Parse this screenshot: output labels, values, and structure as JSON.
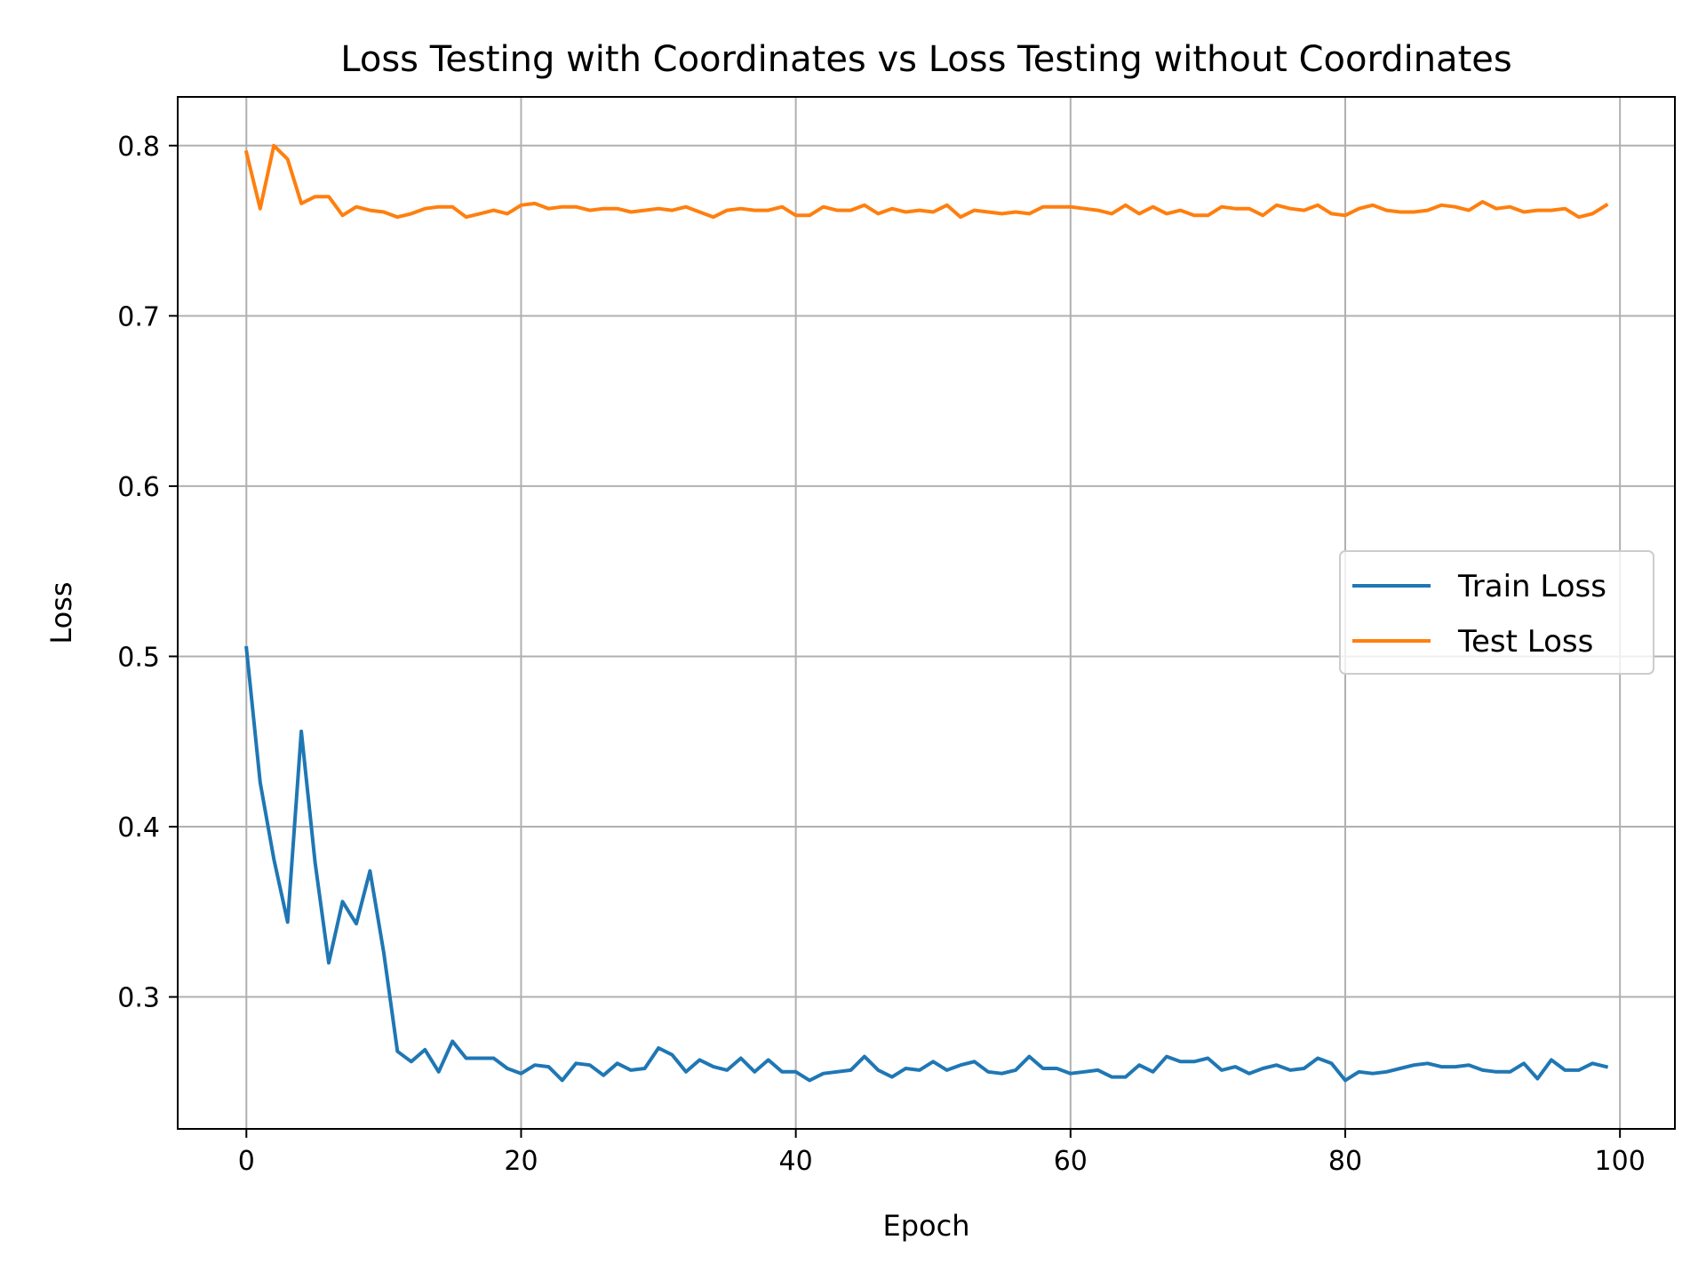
{
  "chart_data": {
    "type": "line",
    "title": "Loss Testing with Coordinates vs Loss Testing without Coordinates",
    "xlabel": "Epoch",
    "ylabel": "Loss",
    "xlim": [
      -5,
      104
    ],
    "ylim": [
      0.2225,
      0.8286
    ],
    "xticks": [
      0,
      20,
      40,
      60,
      80,
      100
    ],
    "yticks": [
      0.3,
      0.4,
      0.5,
      0.6,
      0.7,
      0.8
    ],
    "xtick_labels": [
      "0",
      "20",
      "40",
      "60",
      "80",
      "100"
    ],
    "ytick_labels": [
      "0.3",
      "0.4",
      "0.5",
      "0.6",
      "0.7",
      "0.8"
    ],
    "grid": true,
    "legend_position": "center-right",
    "series": [
      {
        "name": "Train Loss",
        "color": "#1f77b4",
        "x": [
          0,
          1,
          2,
          3,
          4,
          5,
          6,
          7,
          8,
          9,
          10,
          11,
          12,
          13,
          14,
          15,
          16,
          17,
          18,
          19,
          20,
          21,
          22,
          23,
          24,
          25,
          26,
          27,
          28,
          29,
          30,
          31,
          32,
          33,
          34,
          35,
          36,
          37,
          38,
          39,
          40,
          41,
          42,
          43,
          44,
          45,
          46,
          47,
          48,
          49,
          50,
          51,
          52,
          53,
          54,
          55,
          56,
          57,
          58,
          59,
          60,
          61,
          62,
          63,
          64,
          65,
          66,
          67,
          68,
          69,
          70,
          71,
          72,
          73,
          74,
          75,
          76,
          77,
          78,
          79,
          80,
          81,
          82,
          83,
          84,
          85,
          86,
          87,
          88,
          89,
          90,
          91,
          92,
          93,
          94,
          95,
          96,
          97,
          98,
          99
        ],
        "values": [
          0.505,
          0.426,
          0.381,
          0.344,
          0.456,
          0.379,
          0.32,
          0.356,
          0.343,
          0.374,
          0.326,
          0.268,
          0.262,
          0.269,
          0.256,
          0.274,
          0.264,
          0.264,
          0.264,
          0.258,
          0.255,
          0.26,
          0.259,
          0.251,
          0.261,
          0.26,
          0.254,
          0.261,
          0.257,
          0.258,
          0.27,
          0.266,
          0.256,
          0.263,
          0.259,
          0.257,
          0.264,
          0.256,
          0.263,
          0.256,
          0.256,
          0.251,
          0.255,
          0.256,
          0.257,
          0.265,
          0.257,
          0.253,
          0.258,
          0.257,
          0.262,
          0.257,
          0.26,
          0.262,
          0.256,
          0.255,
          0.257,
          0.265,
          0.258,
          0.258,
          0.255,
          0.256,
          0.257,
          0.253,
          0.253,
          0.26,
          0.256,
          0.265,
          0.262,
          0.262,
          0.264,
          0.257,
          0.259,
          0.255,
          0.258,
          0.26,
          0.257,
          0.258,
          0.264,
          0.261,
          0.251,
          0.256,
          0.255,
          0.256,
          0.258,
          0.26,
          0.261,
          0.259,
          0.259,
          0.26,
          0.257,
          0.256,
          0.256,
          0.261,
          0.252,
          0.263,
          0.257,
          0.257,
          0.261,
          0.259
        ]
      },
      {
        "name": "Test Loss",
        "color": "#ff7f0e",
        "x": [
          0,
          1,
          2,
          3,
          4,
          5,
          6,
          7,
          8,
          9,
          10,
          11,
          12,
          13,
          14,
          15,
          16,
          17,
          18,
          19,
          20,
          21,
          22,
          23,
          24,
          25,
          26,
          27,
          28,
          29,
          30,
          31,
          32,
          33,
          34,
          35,
          36,
          37,
          38,
          39,
          40,
          41,
          42,
          43,
          44,
          45,
          46,
          47,
          48,
          49,
          50,
          51,
          52,
          53,
          54,
          55,
          56,
          57,
          58,
          59,
          60,
          61,
          62,
          63,
          64,
          65,
          66,
          67,
          68,
          69,
          70,
          71,
          72,
          73,
          74,
          75,
          76,
          77,
          78,
          79,
          80,
          81,
          82,
          83,
          84,
          85,
          86,
          87,
          88,
          89,
          90,
          91,
          92,
          93,
          94,
          95,
          96,
          97,
          98,
          99
        ],
        "values": [
          0.796,
          0.763,
          0.8,
          0.792,
          0.766,
          0.77,
          0.77,
          0.759,
          0.764,
          0.762,
          0.761,
          0.758,
          0.76,
          0.763,
          0.764,
          0.764,
          0.758,
          0.76,
          0.762,
          0.76,
          0.765,
          0.766,
          0.763,
          0.764,
          0.764,
          0.762,
          0.763,
          0.763,
          0.761,
          0.762,
          0.763,
          0.762,
          0.764,
          0.761,
          0.758,
          0.762,
          0.763,
          0.762,
          0.762,
          0.764,
          0.759,
          0.759,
          0.764,
          0.762,
          0.762,
          0.765,
          0.76,
          0.763,
          0.761,
          0.762,
          0.761,
          0.765,
          0.758,
          0.762,
          0.761,
          0.76,
          0.761,
          0.76,
          0.764,
          0.764,
          0.764,
          0.763,
          0.762,
          0.76,
          0.765,
          0.76,
          0.764,
          0.76,
          0.762,
          0.759,
          0.759,
          0.764,
          0.763,
          0.763,
          0.759,
          0.765,
          0.763,
          0.762,
          0.765,
          0.76,
          0.759,
          0.763,
          0.765,
          0.762,
          0.761,
          0.761,
          0.762,
          0.765,
          0.764,
          0.762,
          0.767,
          0.763,
          0.764,
          0.761,
          0.762,
          0.762,
          0.763,
          0.758,
          0.76,
          0.765
        ]
      }
    ]
  }
}
